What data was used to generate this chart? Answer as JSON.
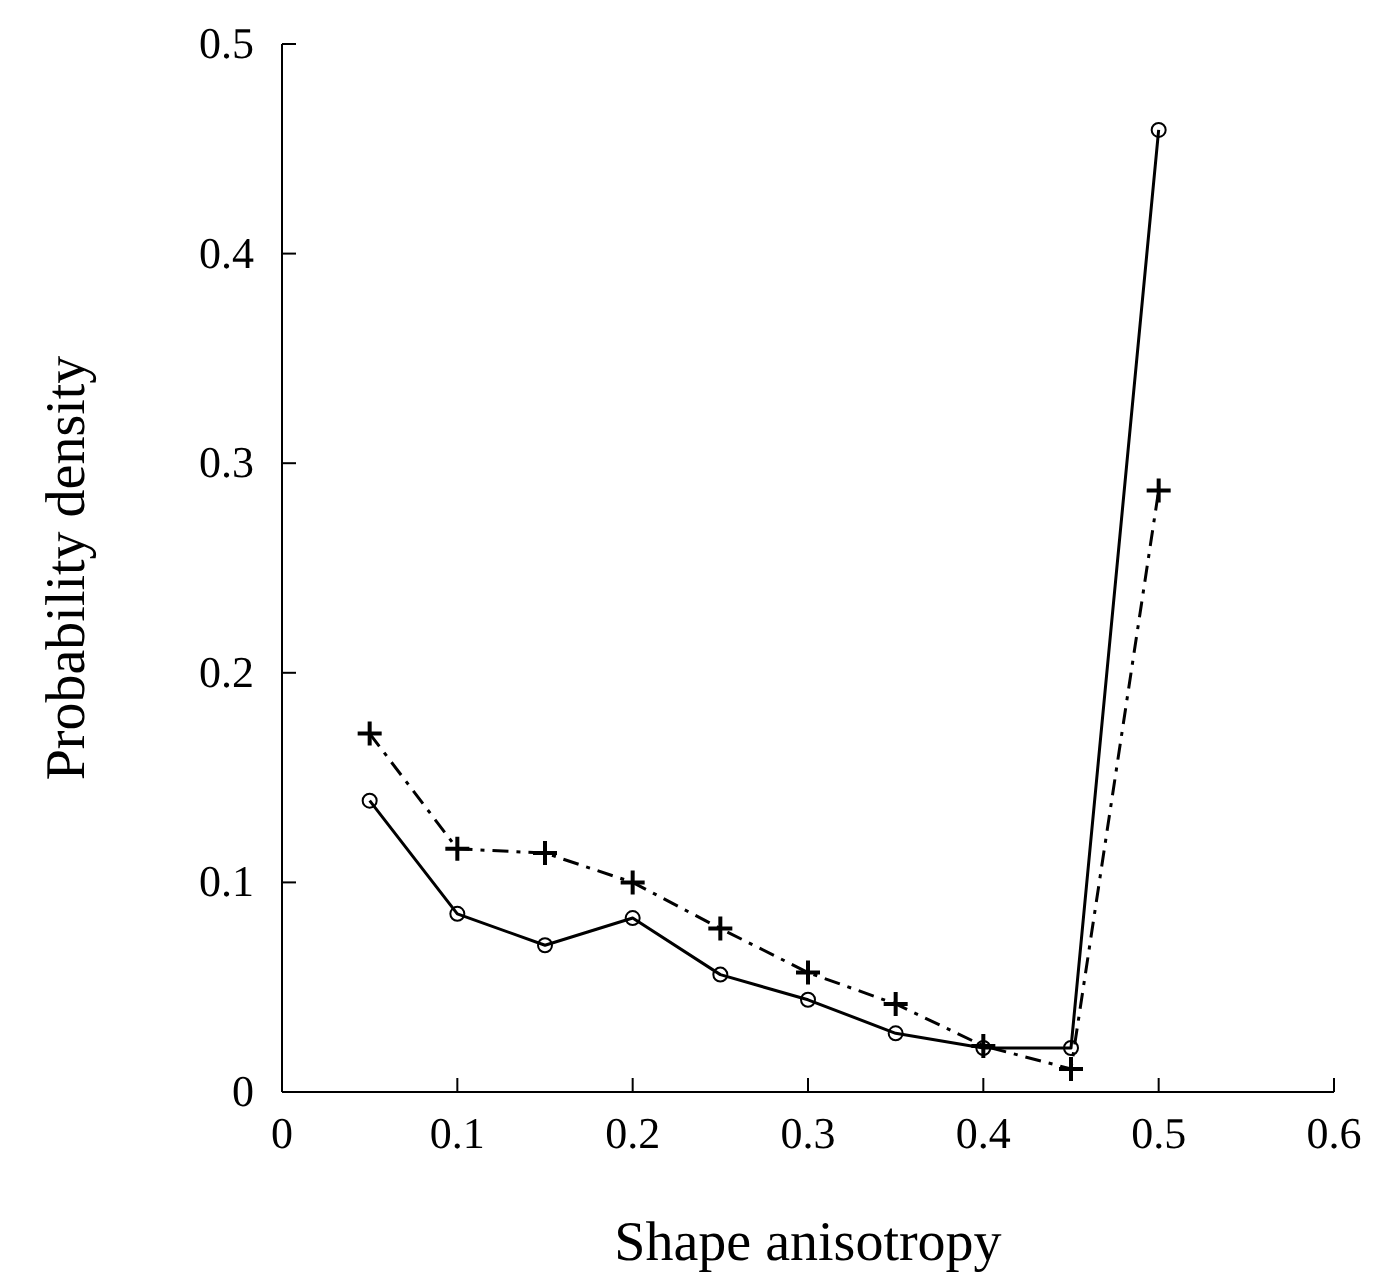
{
  "chart_data": {
    "type": "line",
    "xlabel": "Shape anisotropy",
    "ylabel": "Probability density",
    "x": [
      0.05,
      0.1,
      0.15,
      0.2,
      0.25,
      0.3,
      0.35,
      0.4,
      0.45,
      0.5
    ],
    "series": [
      {
        "color": "#000000",
        "marker": "circle",
        "line_style": "solid",
        "values": [
          0.139,
          0.085,
          0.07,
          0.083,
          0.056,
          0.044,
          0.028,
          0.021,
          0.021,
          0.459
        ]
      },
      {
        "color": "#000000",
        "marker": "cross",
        "line_style": "dashed",
        "values": [
          0.171,
          0.116,
          0.114,
          0.1,
          0.078,
          0.057,
          0.042,
          0.022,
          0.011,
          0.287
        ]
      }
    ],
    "xlim": [
      0,
      0.6
    ],
    "xticks": [
      0,
      0.1,
      0.2,
      0.3,
      0.4,
      0.5,
      0.6
    ],
    "ylim": [
      0,
      0.5
    ],
    "yticks": [
      0,
      0.1,
      0.2,
      0.3,
      0.4,
      0.5
    ]
  }
}
